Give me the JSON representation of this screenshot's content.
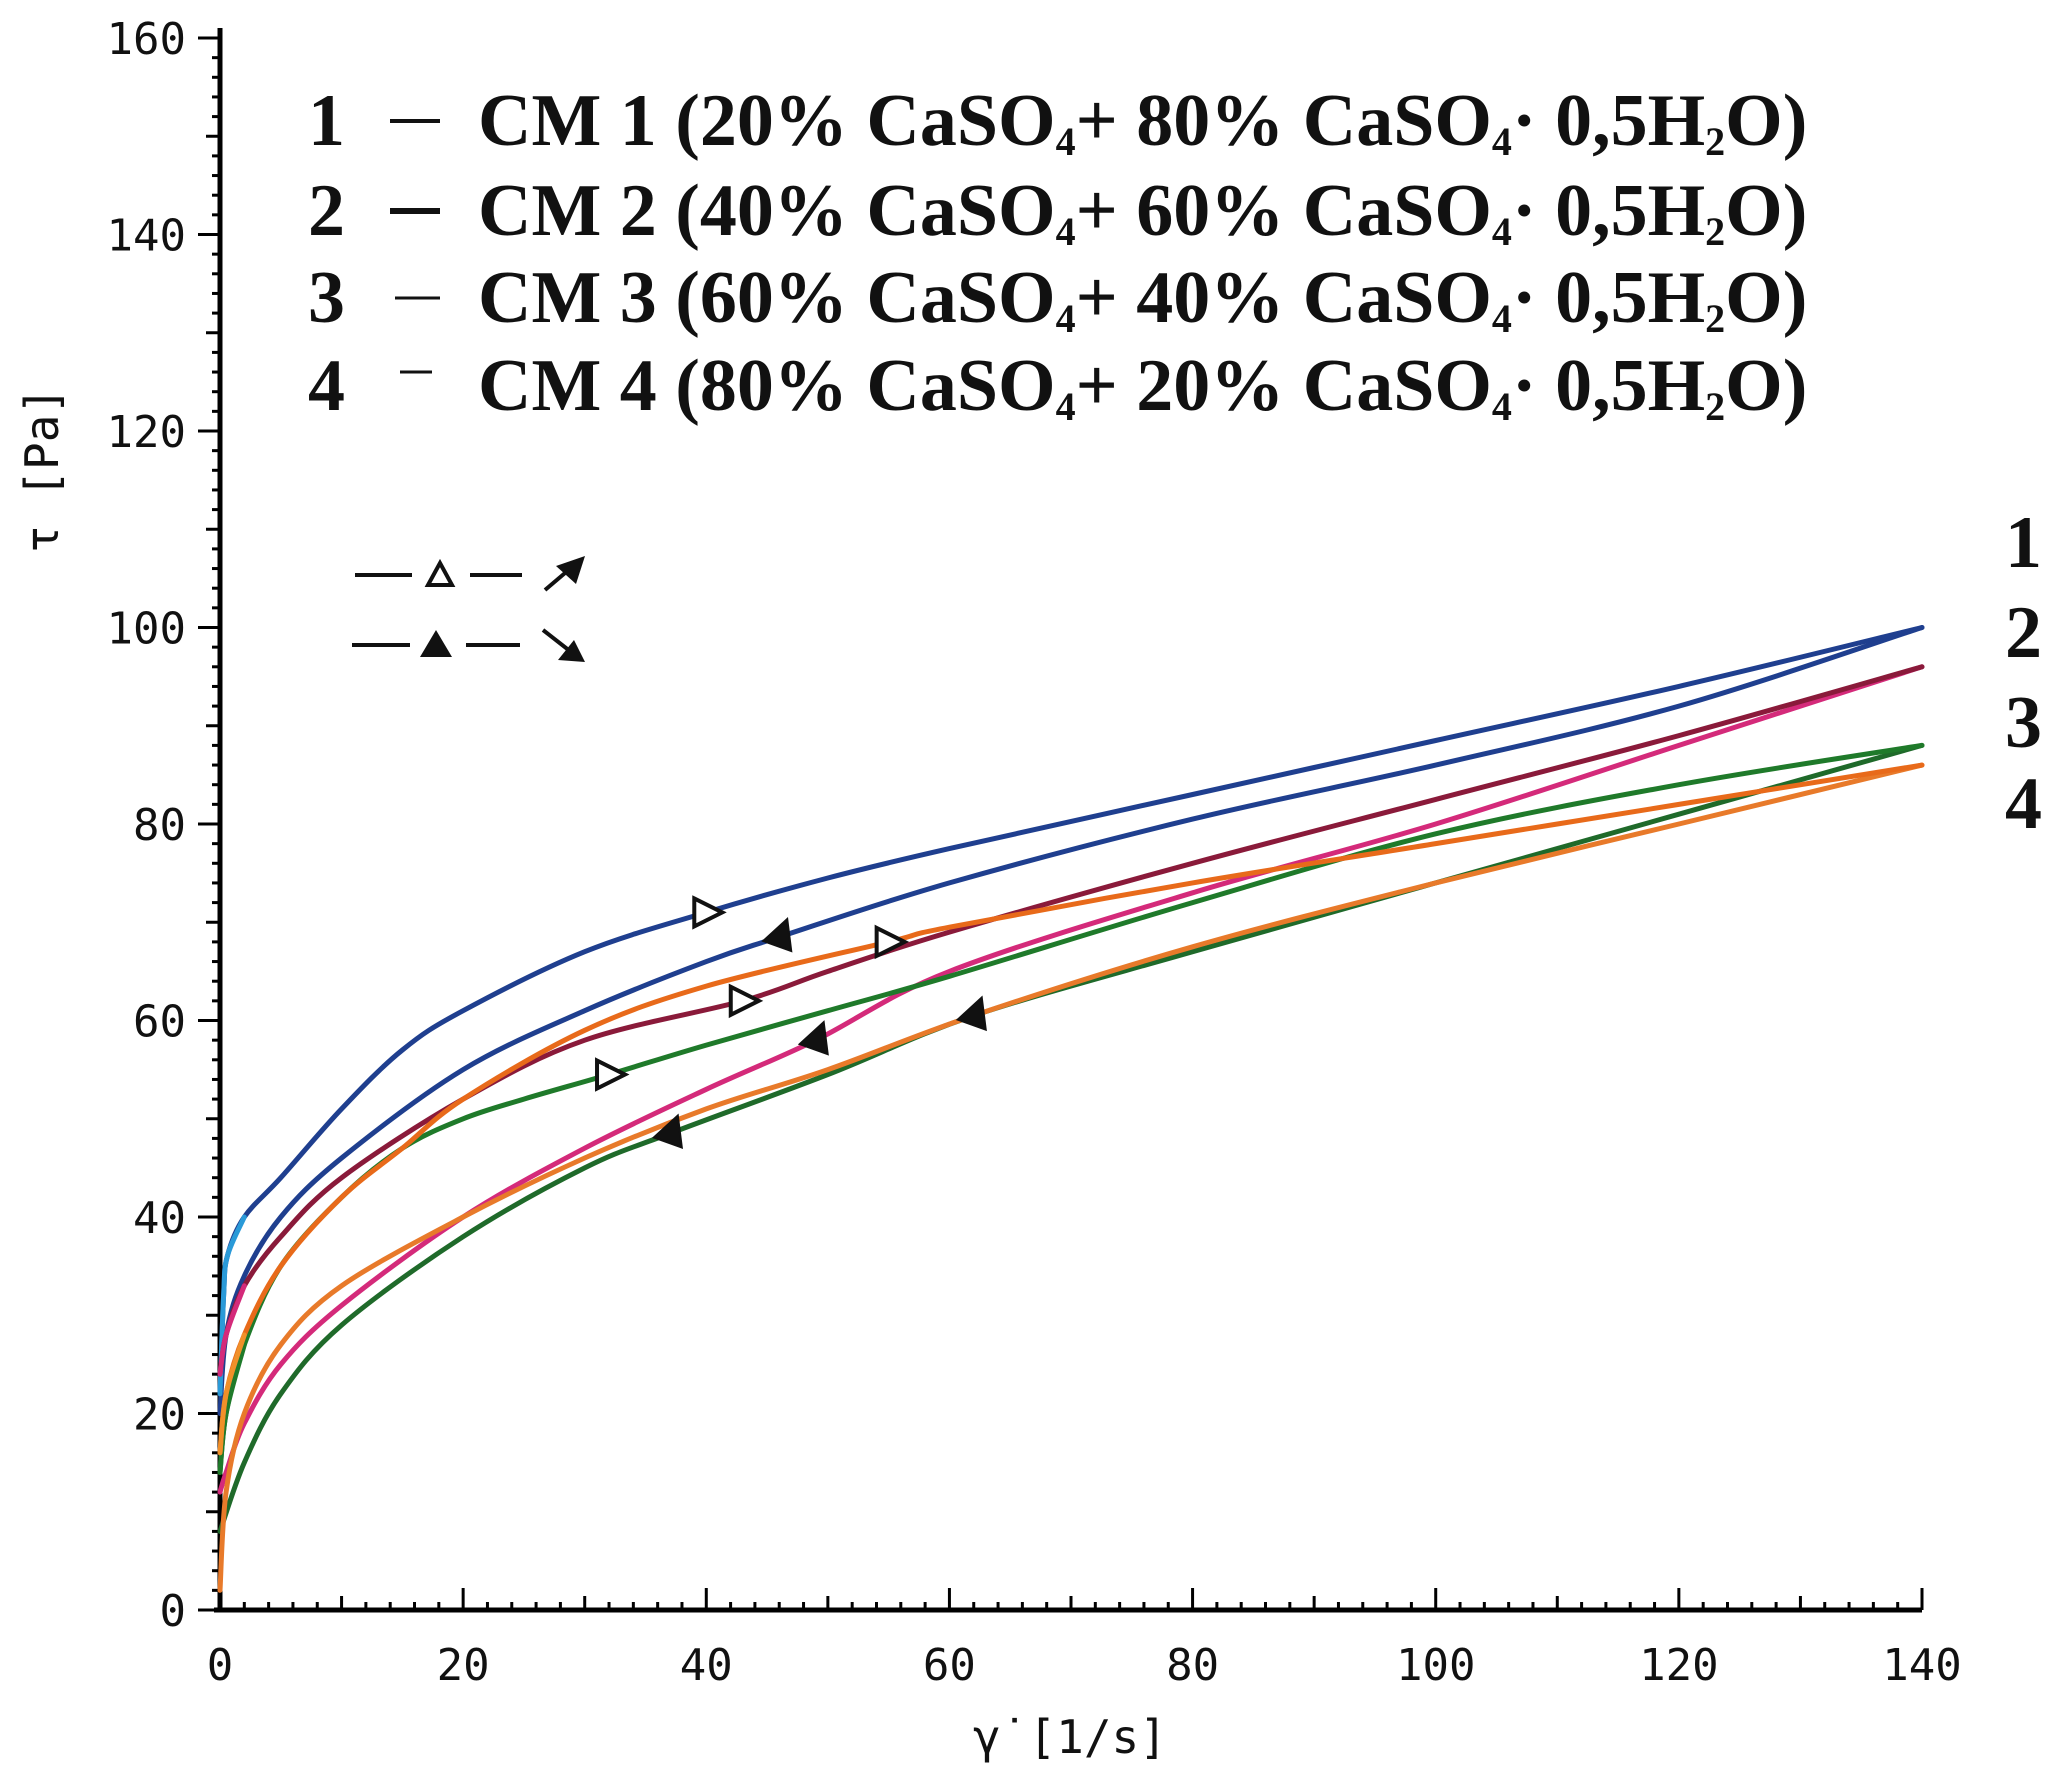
{
  "chart_data": {
    "type": "line",
    "title": "",
    "xlabel": "γ̇ [1/s]",
    "ylabel": "τ [Pa]",
    "xlim": [
      0,
      140
    ],
    "ylim": [
      0,
      160
    ],
    "x_ticks": [
      "0",
      "20",
      "40",
      "60",
      "80",
      "100",
      "120",
      "140"
    ],
    "y_ticks": [
      "0",
      "20",
      "40",
      "60",
      "80",
      "100",
      "120",
      "140",
      "160"
    ],
    "legend": [
      {
        "num": "1",
        "label": "CM 1 (20% CaSO",
        "mid": "+ 80% CaSO",
        "tail": "· 0,5H",
        "end": "O)"
      },
      {
        "num": "2",
        "label": "CM 2 (40% CaSO",
        "mid": "+ 60% CaSO",
        "tail": "· 0,5H",
        "end": "O)"
      },
      {
        "num": "3",
        "label": "CM 3 (60% CaSO",
        "mid": "+ 40% CaSO",
        "tail": "· 0,5H",
        "end": "O)"
      },
      {
        "num": "4",
        "label": "CM 4 (80% CaSO",
        "mid": "+ 20% CaSO",
        "tail": "· 0,5H",
        "end": "O)"
      }
    ],
    "direction_legend": [
      {
        "marker": "open-triangle",
        "meaning": "up-curve",
        "arrow": "↗"
      },
      {
        "marker": "filled-triangle",
        "meaning": "down-curve",
        "arrow": "↘"
      }
    ],
    "end_labels": [
      "1",
      "2",
      "3",
      "4"
    ],
    "series": [
      {
        "name": "CM 1",
        "color_up": "#1f3f8f",
        "color_down": "#1f3f8f",
        "color_start": "#2a9ad8",
        "up": [
          [
            0,
            22
          ],
          [
            0.3,
            32
          ],
          [
            0.6,
            36
          ],
          [
            2,
            40
          ],
          [
            5,
            44
          ],
          [
            10,
            51
          ],
          [
            15,
            57
          ],
          [
            20,
            61
          ],
          [
            30,
            67
          ],
          [
            40,
            71
          ],
          [
            50,
            74.5
          ],
          [
            60,
            77.5
          ],
          [
            80,
            83
          ],
          [
            100,
            88.5
          ],
          [
            120,
            94
          ],
          [
            140,
            100
          ]
        ],
        "down": [
          [
            140,
            100
          ],
          [
            120,
            92
          ],
          [
            100,
            86
          ],
          [
            80,
            80.5
          ],
          [
            60,
            74
          ],
          [
            46,
            68.5
          ],
          [
            40,
            66
          ],
          [
            30,
            61
          ],
          [
            20,
            55
          ],
          [
            10,
            46
          ],
          [
            5,
            40
          ],
          [
            2,
            34
          ],
          [
            0.5,
            28
          ],
          [
            0,
            20
          ]
        ],
        "up_marker": {
          "x": 40,
          "y": 71
        },
        "down_marker": {
          "x": 46,
          "y": 68.5
        },
        "end_value": 100
      },
      {
        "name": "CM 2",
        "color_up": "#8a1a3a",
        "color_down": "#d42a7a",
        "color_start": "#d42a7a",
        "up": [
          [
            0,
            24
          ],
          [
            0.5,
            28
          ],
          [
            2,
            33
          ],
          [
            5,
            38
          ],
          [
            10,
            44
          ],
          [
            20,
            52
          ],
          [
            30,
            58
          ],
          [
            43,
            62
          ],
          [
            50,
            65
          ],
          [
            60,
            69
          ],
          [
            80,
            76
          ],
          [
            100,
            82.5
          ],
          [
            120,
            89
          ],
          [
            140,
            96
          ]
        ],
        "down": [
          [
            140,
            96
          ],
          [
            120,
            88
          ],
          [
            100,
            80
          ],
          [
            80,
            73
          ],
          [
            60,
            65
          ],
          [
            49,
            58
          ],
          [
            40,
            53
          ],
          [
            30,
            47
          ],
          [
            20,
            40
          ],
          [
            10,
            31
          ],
          [
            5,
            25
          ],
          [
            2,
            19
          ],
          [
            0.5,
            14
          ],
          [
            0,
            12
          ]
        ],
        "up_marker": {
          "x": 43,
          "y": 62
        },
        "down_marker": {
          "x": 49,
          "y": 58
        },
        "end_value": 96
      },
      {
        "name": "CM 3",
        "color_up": "#1f7a2a",
        "color_down": "#1f6a2a",
        "color_start": "#1f7a2a",
        "up": [
          [
            0,
            14
          ],
          [
            0.5,
            20
          ],
          [
            2,
            27
          ],
          [
            5,
            35
          ],
          [
            10,
            42
          ],
          [
            15,
            47
          ],
          [
            20,
            50
          ],
          [
            25,
            52
          ],
          [
            32,
            54.5
          ],
          [
            40,
            57.5
          ],
          [
            50,
            61
          ],
          [
            60,
            64.5
          ],
          [
            80,
            72
          ],
          [
            100,
            79
          ],
          [
            120,
            84
          ],
          [
            140,
            88
          ]
        ],
        "down": [
          [
            140,
            88
          ],
          [
            120,
            81
          ],
          [
            100,
            74
          ],
          [
            80,
            67
          ],
          [
            62,
            60.5
          ],
          [
            50,
            54.5
          ],
          [
            37,
            48.5
          ],
          [
            30,
            45
          ],
          [
            20,
            38
          ],
          [
            10,
            29
          ],
          [
            5,
            22
          ],
          [
            2,
            15
          ],
          [
            0,
            8
          ]
        ],
        "up_marker": {
          "x": 32,
          "y": 54.5
        },
        "down_marker": {
          "x": 37,
          "y": 48.5
        },
        "end_value": 88
      },
      {
        "name": "CM 4",
        "color_up": "#e86a1a",
        "color_down": "#e87a2a",
        "color_start": "#f0902a",
        "up": [
          [
            0,
            16
          ],
          [
            0.5,
            22
          ],
          [
            2,
            28
          ],
          [
            5,
            35
          ],
          [
            10,
            42
          ],
          [
            15,
            47
          ],
          [
            20,
            52
          ],
          [
            30,
            59
          ],
          [
            40,
            63.5
          ],
          [
            55,
            68
          ],
          [
            60,
            69.5
          ],
          [
            80,
            74
          ],
          [
            100,
            78
          ],
          [
            120,
            82
          ],
          [
            140,
            86
          ]
        ],
        "down": [
          [
            140,
            86
          ],
          [
            120,
            80
          ],
          [
            100,
            74
          ],
          [
            80,
            67.5
          ],
          [
            62,
            60.5
          ],
          [
            50,
            55
          ],
          [
            40,
            51
          ],
          [
            30,
            46
          ],
          [
            20,
            40
          ],
          [
            10,
            33
          ],
          [
            5,
            27
          ],
          [
            2,
            20
          ],
          [
            0.5,
            12
          ],
          [
            0,
            2
          ]
        ],
        "up_marker": {
          "x": 55,
          "y": 68
        },
        "down_marker": {
          "x": 62,
          "y": 60.5
        },
        "end_value": 86
      }
    ],
    "grid": false
  }
}
